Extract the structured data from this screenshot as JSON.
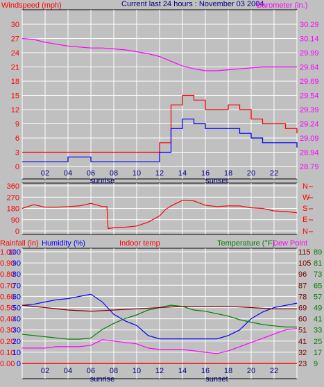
{
  "top_panel": {
    "left_title": "Windspeed (mph)",
    "center_title": "Current last 24 hours : November 03 2004",
    "right_title": "Barometer (in.)"
  },
  "bottom_panel": {
    "rain_label": "Rainfall (in)",
    "humidity_label": "Humidity (%)",
    "indoor_label": "Indoor temp",
    "temp_label": "Temperature (°F)",
    "dew_label": "Dew Point"
  },
  "time_axis": {
    "hour_labels": [
      "02",
      "04",
      "06",
      "08",
      "10",
      "12",
      "14",
      "16",
      "18",
      "20",
      "22"
    ],
    "sunrise_label": "sunrise",
    "sunset_label": "sunset"
  },
  "colors": {
    "background": "#c0c0c0",
    "frame": "#000000",
    "grid": "#ffffff",
    "wind_speed": "#ff0000",
    "wind_avg": "#0000ff",
    "barometer": "#ff00ff",
    "direction": "#ff0000",
    "humidity": "#0000ff",
    "temperature": "#008000",
    "indoor_temp": "#800000",
    "dew_point": "#ff00ff",
    "rainfall": "#ff0000",
    "title_center": "#000080",
    "right_axis_dark": "#800000"
  },
  "chart_data": [
    {
      "type": "line",
      "title": "Current last 24 hours : November 03 2004",
      "ylabel": "Windspeed (mph)",
      "y2label": "Barometer (in.)",
      "x_ticks": [
        "02",
        "04",
        "06",
        "08",
        "10",
        "12",
        "14",
        "16",
        "18",
        "20",
        "22"
      ],
      "ylim": [
        0,
        30
      ],
      "yticks": [
        0,
        3,
        6,
        9,
        12,
        15,
        18,
        21,
        24,
        27,
        30
      ],
      "y2lim": [
        28.79,
        30.29
      ],
      "y2ticks": [
        "28.79",
        "28.94",
        "29.09",
        "29.24",
        "29.39",
        "29.54",
        "29.69",
        "29.84",
        "29.99",
        "30.14",
        "30.29"
      ],
      "series": [
        {
          "id": "wind_speed",
          "hours": [
            0,
            2,
            4,
            6,
            8,
            10,
            11,
            12,
            13,
            14,
            15,
            16,
            17,
            18,
            19,
            20,
            21,
            22,
            23,
            24
          ],
          "values": [
            3,
            3,
            3,
            3,
            3,
            3,
            3,
            5,
            13,
            15,
            14,
            12,
            12,
            13,
            12,
            10,
            9,
            9,
            8,
            7
          ]
        },
        {
          "id": "wind_avg",
          "hours": [
            0,
            2,
            4,
            6,
            8,
            10,
            11,
            12,
            13,
            14,
            15,
            16,
            17,
            18,
            19,
            20,
            21,
            22,
            23,
            24
          ],
          "values": [
            1,
            1,
            2,
            1,
            1,
            1,
            1,
            3,
            8,
            10,
            9,
            8,
            8,
            8,
            7,
            6,
            5,
            5,
            5,
            4
          ]
        },
        {
          "id": "barometer",
          "hours": [
            0,
            1,
            2,
            3,
            4,
            5,
            6,
            7,
            8,
            9,
            10,
            11,
            12,
            13,
            14,
            15,
            16,
            17,
            18,
            19,
            20,
            21,
            22,
            23,
            24
          ],
          "values": [
            30.14,
            30.13,
            30.1,
            30.08,
            30.06,
            30.05,
            30.04,
            30.04,
            30.03,
            30.02,
            30.0,
            29.98,
            29.95,
            29.9,
            29.85,
            29.82,
            29.8,
            29.8,
            29.81,
            29.82,
            29.83,
            29.84,
            29.84,
            29.84,
            29.84
          ]
        }
      ]
    },
    {
      "type": "line",
      "ylabel": "",
      "ylim": [
        0,
        360
      ],
      "yticks": [
        0,
        90,
        180,
        270,
        360
      ],
      "y2ticks": [
        "N",
        "W",
        "S",
        "E",
        "N"
      ],
      "series": [
        {
          "id": "wind_direction",
          "hours": [
            0,
            1,
            2,
            3,
            4,
            5,
            6,
            7,
            7.4,
            7.5,
            8,
            9,
            10,
            11,
            12,
            12.5,
            13,
            14,
            15,
            16,
            17,
            18,
            19,
            20,
            21,
            22,
            23,
            24
          ],
          "values": [
            180,
            210,
            190,
            190,
            195,
            200,
            220,
            195,
            195,
            20,
            25,
            30,
            40,
            70,
            120,
            170,
            200,
            245,
            240,
            205,
            195,
            200,
            200,
            185,
            180,
            160,
            155,
            145
          ]
        }
      ]
    },
    {
      "type": "line",
      "ylim_humidity": [
        0,
        100
      ],
      "yticks_rain": [
        "0.00",
        "0.10",
        "0.20",
        "0.30",
        "0.40",
        "0.50",
        "0.60",
        "0.70",
        "0.80",
        "0.90",
        "1.00"
      ],
      "yticks_humidity": [
        0,
        10,
        20,
        30,
        40,
        50,
        60,
        70,
        80,
        90,
        100
      ],
      "yticks_temp": [
        23,
        32,
        41,
        51,
        60,
        69,
        78,
        87,
        96,
        105,
        115
      ],
      "yticks_dew": [
        9,
        17,
        25,
        33,
        41,
        49,
        57,
        65,
        73,
        81,
        89
      ],
      "series": [
        {
          "id": "humidity",
          "hours": [
            0,
            1,
            2,
            3,
            4,
            5,
            6,
            7,
            8,
            9,
            10,
            11,
            12,
            13,
            14,
            15,
            16,
            17,
            18,
            19,
            20,
            21,
            22,
            23,
            24
          ],
          "values": [
            52,
            53,
            55,
            57,
            58,
            60,
            62,
            55,
            44,
            38,
            34,
            25,
            22,
            22,
            22,
            22,
            22,
            22,
            25,
            30,
            40,
            46,
            50,
            52,
            54
          ]
        },
        {
          "id": "temperature",
          "hours": [
            0,
            1,
            2,
            3,
            4,
            5,
            6,
            7,
            8,
            9,
            10,
            11,
            12,
            13,
            14,
            15,
            16,
            17,
            18,
            19,
            20,
            21,
            22,
            23,
            24
          ],
          "values": [
            47,
            46,
            45,
            44,
            43,
            43,
            44,
            51,
            56,
            60,
            63,
            67,
            69,
            71,
            70,
            67,
            66,
            64,
            62,
            59,
            57,
            55,
            54,
            53,
            53
          ]
        },
        {
          "id": "indoor_temp",
          "hours": [
            0,
            2,
            4,
            6,
            8,
            10,
            12,
            14,
            16,
            18,
            20,
            22,
            24
          ],
          "values": [
            71,
            69,
            67,
            66,
            67,
            68,
            69,
            70,
            70,
            70,
            69,
            68,
            68
          ]
        },
        {
          "id": "dew_point",
          "hours": [
            0,
            1,
            2,
            3,
            4,
            5,
            6,
            7,
            8,
            9,
            10,
            11,
            12,
            13,
            14,
            15,
            16,
            17,
            18,
            19,
            20,
            21,
            22,
            23,
            24
          ],
          "values": [
            20,
            20,
            20,
            21,
            21,
            21,
            22,
            26,
            25,
            24,
            23,
            20,
            19,
            19,
            19,
            18,
            17,
            16,
            18,
            21,
            24,
            27,
            30,
            33,
            34
          ]
        },
        {
          "id": "rainfall",
          "hours": [
            0,
            24
          ],
          "values": [
            0.0,
            0.0
          ]
        }
      ]
    }
  ]
}
